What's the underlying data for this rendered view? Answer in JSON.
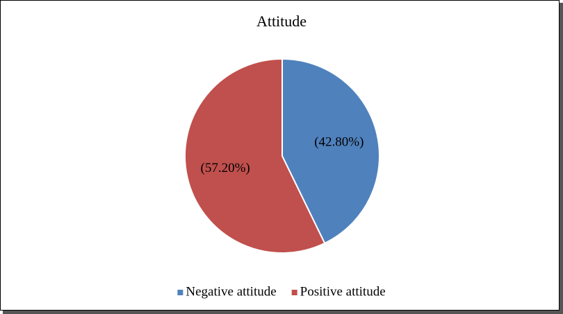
{
  "chart_data": {
    "type": "pie",
    "title": "Attitude",
    "categories": [
      "Negative attitude",
      "Positive attitude"
    ],
    "values": [
      42.8,
      57.2
    ],
    "value_labels": [
      "(42.80%)",
      "(57.20%)"
    ],
    "colors": [
      "#4f81bd",
      "#c0504d"
    ],
    "legend": "bottom"
  }
}
